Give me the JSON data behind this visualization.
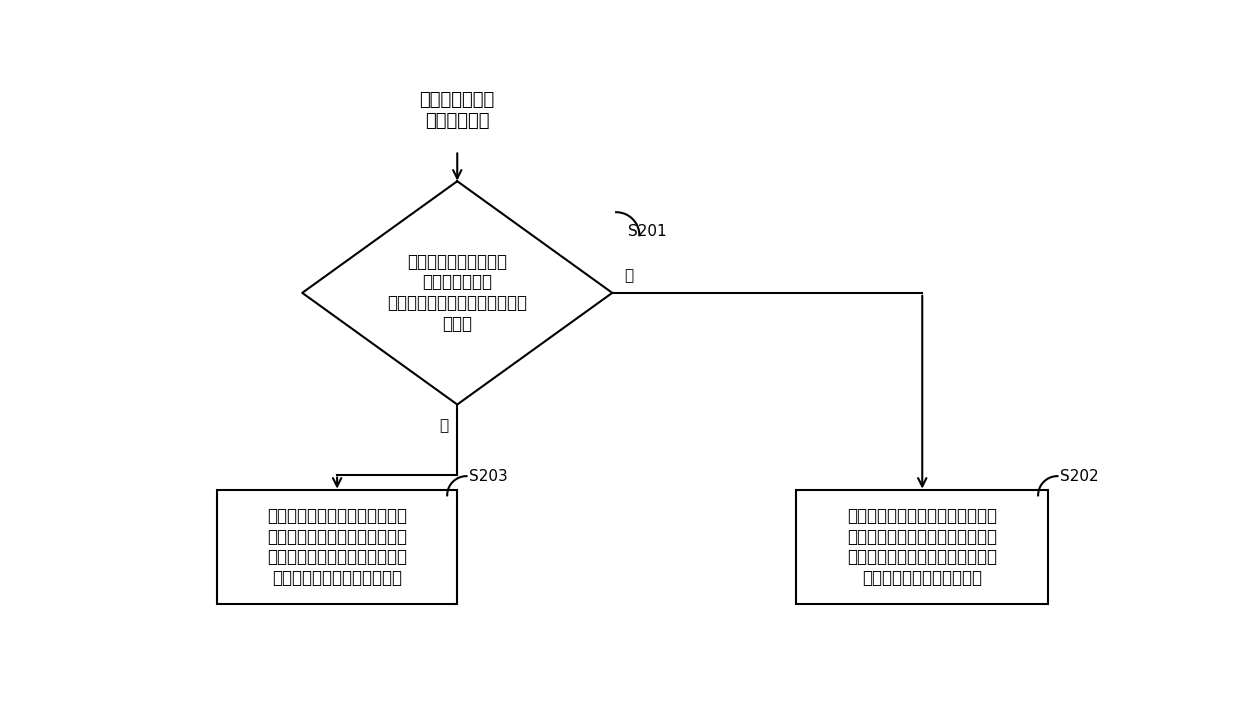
{
  "background_color": "#ffffff",
  "title_text": "删除脚本信息的\n脚本更新指令",
  "diamond_text": "检测该脚本信息对应的\n控件信息是否与\n操作步骤表中的其他操作步骤信\n息关联",
  "box_left_text": "当检测到所述脚本信息对应的控\n件信息与其他操作步骤信息关联\n时，保留所述脚本信息对应的控\n件信息在所述控件表中的记录",
  "box_right_text": "当检测到所述脚本信息对应的控件\n信息没有与其他操作步骤信息关联\n时，删除所述脚本信息对应的控件\n信息在所述控件表中的记录",
  "label_s201": "S201",
  "label_s202": "S202",
  "label_s203": "S203",
  "label_yes": "是",
  "label_no": "否",
  "font_size_title": 13,
  "font_size_diamond": 12,
  "font_size_box": 12,
  "font_size_label": 11,
  "font_size_yn": 11,
  "line_color": "#000000",
  "box_fill": "#ffffff",
  "box_edge": "#000000",
  "lw": 1.5
}
